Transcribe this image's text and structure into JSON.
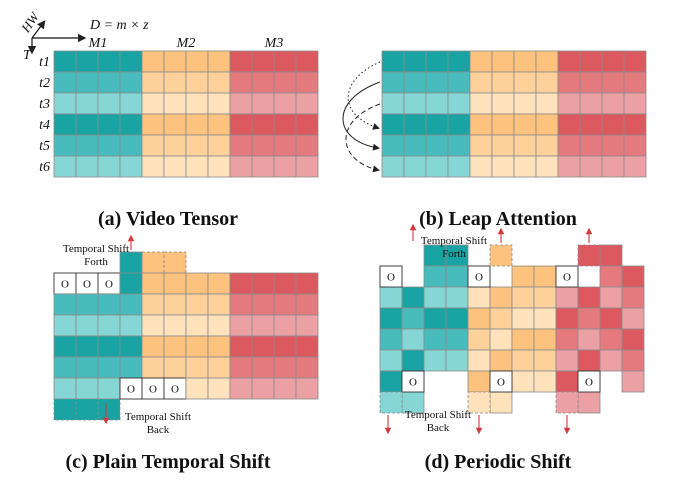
{
  "colors": {
    "teal": [
      "#1aa3a3",
      "#48bcbc",
      "#86d6d6"
    ],
    "orange": [
      "#fcc27e",
      "#fdd199",
      "#fde2bb"
    ],
    "red": [
      "#dc5a5f",
      "#e57a7e",
      "#eba1a4"
    ]
  },
  "axes": {
    "hw_label": "HW",
    "t_label": "T",
    "d_formula": "D = m × z",
    "modality_labels": [
      "M1",
      "M2",
      "M3"
    ],
    "time_labels": [
      "t1",
      "t2",
      "t3",
      "t4",
      "t5",
      "t6"
    ]
  },
  "panel_a": {
    "caption": "(a) Video Tensor"
  },
  "panel_b": {
    "caption": "(b) Leap Attention"
  },
  "panel_c": {
    "caption": "(c) Plain Temporal Shift",
    "shift_forth_label": [
      "Temporal Shift",
      "Forth"
    ],
    "shift_back_label": [
      "Temporal Shift",
      "Back"
    ],
    "zero_symbol": "O"
  },
  "panel_d": {
    "caption": "(d) Periodic Shift",
    "shift_forth_label": [
      "Temporal Shift",
      "Forth"
    ],
    "shift_back_label": [
      "Temporal Shift",
      "Back"
    ],
    "zero_symbol": "O"
  }
}
